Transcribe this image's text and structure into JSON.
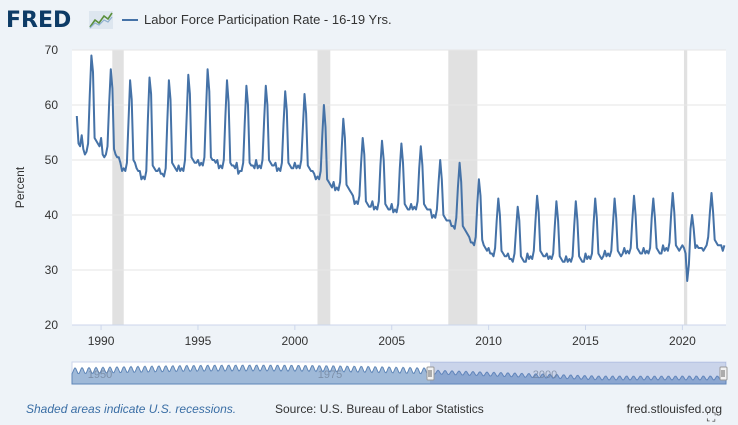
{
  "header": {
    "logo_text": "FRED",
    "logo_icon": "trend-chart-icon",
    "legend_label": "Labor Force Participation Rate - 16-19 Yrs.",
    "series_color": "#4572a7"
  },
  "footer": {
    "recession_note": "Shaded areas indicate U.S. recessions.",
    "source": "Source: U.S. Bureau of Labor Statistics",
    "url": "fred.stlouisfed.org",
    "expand_icon": "fullscreen-icon"
  },
  "chart_data": {
    "type": "line",
    "title": "",
    "xlabel": "",
    "ylabel": "Percent",
    "xlim": [
      1988.5,
      2022.25
    ],
    "ylim": [
      20,
      70
    ],
    "y_ticks": [
      20,
      30,
      40,
      50,
      60,
      70
    ],
    "x_ticks": [
      1990,
      1995,
      2000,
      2005,
      2010,
      2015,
      2020
    ],
    "grid": true,
    "recessions": [
      [
        1990.58,
        1991.17
      ],
      [
        2001.17,
        2001.83
      ],
      [
        2007.92,
        2009.42
      ],
      [
        2020.08,
        2020.25
      ]
    ],
    "annual_profile": {
      "1989": [
        54.5,
        52.0,
        51.0,
        51.5,
        53.0,
        62.0,
        69.0,
        66.0,
        54.0,
        53.5,
        53.0,
        52.5
      ],
      "1990": [
        54.0,
        51.0,
        50.5,
        51.0,
        52.5,
        60.0,
        66.5,
        63.0,
        52.0,
        51.0,
        50.5,
        50.5
      ],
      "1991": [
        49.5,
        48.0,
        48.5,
        48.0,
        49.5,
        57.0,
        64.5,
        61.0,
        50.0,
        49.5,
        48.5,
        48.0
      ],
      "1992": [
        48.0,
        46.5,
        47.0,
        46.5,
        48.0,
        57.5,
        65.0,
        62.0,
        49.0,
        48.5,
        48.0,
        48.0
      ],
      "1993": [
        48.5,
        47.5,
        47.5,
        47.0,
        48.5,
        57.0,
        64.5,
        61.0,
        49.5,
        49.0,
        48.5,
        48.0
      ],
      "1994": [
        49.0,
        48.0,
        48.5,
        48.0,
        50.0,
        58.0,
        65.5,
        62.0,
        50.5,
        50.0,
        49.5,
        49.5
      ],
      "1995": [
        50.0,
        49.0,
        49.5,
        49.0,
        50.5,
        59.0,
        66.5,
        62.5,
        50.5,
        50.0,
        50.0,
        49.5
      ],
      "1996": [
        50.0,
        48.5,
        49.0,
        48.5,
        50.0,
        58.0,
        64.5,
        60.5,
        49.5,
        49.0,
        49.0,
        48.5
      ],
      "1997": [
        49.5,
        47.5,
        48.0,
        48.0,
        49.5,
        57.0,
        63.5,
        60.0,
        49.5,
        49.0,
        49.0,
        48.5
      ],
      "1998": [
        50.0,
        48.5,
        49.0,
        48.5,
        50.0,
        57.5,
        63.5,
        60.0,
        50.0,
        49.5,
        49.0,
        49.0
      ],
      "1999": [
        49.5,
        48.0,
        48.5,
        48.0,
        49.5,
        56.5,
        62.5,
        59.0,
        49.5,
        49.0,
        48.5,
        48.5
      ],
      "2000": [
        49.5,
        48.5,
        49.0,
        48.5,
        50.0,
        56.0,
        62.0,
        58.5,
        49.0,
        48.5,
        48.0,
        48.0
      ],
      "2001": [
        47.5,
        46.5,
        47.0,
        46.5,
        48.0,
        54.5,
        60.0,
        56.0,
        46.5,
        46.0,
        45.5,
        45.0
      ],
      "2002": [
        46.0,
        44.5,
        45.0,
        44.5,
        46.0,
        52.0,
        57.5,
        54.0,
        45.5,
        45.0,
        44.5,
        44.0
      ],
      "2003": [
        43.5,
        42.0,
        42.5,
        42.0,
        43.5,
        49.5,
        54.0,
        51.0,
        42.5,
        42.0,
        41.5,
        41.5
      ],
      "2004": [
        42.5,
        41.0,
        41.5,
        41.0,
        42.5,
        49.0,
        53.5,
        50.0,
        42.0,
        41.5,
        41.0,
        41.0
      ],
      "2005": [
        42.0,
        40.5,
        41.0,
        40.5,
        42.0,
        48.5,
        53.0,
        49.5,
        42.0,
        41.5,
        41.0,
        41.0
      ],
      "2006": [
        42.0,
        41.0,
        41.5,
        41.0,
        42.5,
        48.5,
        52.5,
        49.0,
        42.0,
        41.5,
        41.0,
        41.0
      ],
      "2007": [
        41.0,
        39.5,
        40.0,
        39.5,
        41.0,
        46.0,
        50.0,
        46.5,
        40.0,
        39.5,
        39.0,
        39.0
      ],
      "2008": [
        39.0,
        38.0,
        38.0,
        37.5,
        39.5,
        45.0,
        49.5,
        46.0,
        38.0,
        37.5,
        37.0,
        36.5
      ],
      "2009": [
        36.0,
        35.0,
        35.0,
        34.5,
        36.0,
        42.0,
        46.5,
        43.5,
        35.5,
        34.5,
        34.0,
        33.5
      ],
      "2010": [
        34.0,
        33.0,
        33.0,
        32.5,
        34.0,
        39.0,
        43.0,
        40.0,
        33.5,
        33.0,
        32.5,
        32.5
      ],
      "2011": [
        33.0,
        32.0,
        32.0,
        31.5,
        33.0,
        37.5,
        41.5,
        39.0,
        32.5,
        32.0,
        31.5,
        31.5
      ],
      "2012": [
        33.0,
        32.0,
        32.5,
        32.0,
        33.5,
        39.0,
        43.5,
        40.5,
        33.5,
        33.0,
        32.5,
        32.5
      ],
      "2013": [
        33.0,
        32.0,
        32.5,
        32.0,
        33.0,
        38.0,
        42.5,
        39.0,
        32.5,
        32.0,
        31.5,
        31.5
      ],
      "2014": [
        32.5,
        31.5,
        32.0,
        31.5,
        32.5,
        38.0,
        42.5,
        39.0,
        32.5,
        32.0,
        31.5,
        31.5
      ],
      "2015": [
        33.0,
        32.0,
        32.5,
        32.0,
        33.0,
        38.5,
        43.0,
        39.5,
        33.0,
        32.5,
        32.0,
        32.5
      ],
      "2016": [
        33.5,
        32.5,
        33.0,
        32.5,
        33.5,
        38.5,
        43.0,
        39.5,
        33.5,
        33.0,
        32.5,
        33.0
      ],
      "2017": [
        34.0,
        33.0,
        33.5,
        33.0,
        34.0,
        39.0,
        43.5,
        40.0,
        34.0,
        33.5,
        33.0,
        33.0
      ],
      "2018": [
        34.0,
        33.0,
        33.5,
        33.0,
        34.0,
        39.5,
        43.0,
        39.5,
        34.0,
        33.5,
        33.0,
        33.0
      ],
      "2019": [
        34.5,
        33.5,
        34.0,
        33.5,
        35.0,
        40.0,
        44.0,
        40.5,
        34.5,
        34.0,
        33.5,
        34.0
      ],
      "2020": [
        34.5,
        34.0,
        33.0,
        28.0,
        31.0,
        37.5,
        40.0,
        37.5,
        34.0,
        34.5,
        34.0,
        34.0
      ],
      "2021": [
        34.0,
        33.5,
        34.0,
        34.5,
        36.0,
        40.5,
        44.0,
        40.5,
        35.5,
        35.0,
        34.5,
        34.5
      ],
      "2022": [
        34.5,
        33.5,
        34.5
      ]
    },
    "start": {
      "year": 1988,
      "months": [
        10,
        11,
        12
      ],
      "values": [
        58.0,
        53.0,
        52.5
      ]
    }
  },
  "navigator": {
    "labels": [
      "1950",
      "1975",
      "2000"
    ]
  }
}
